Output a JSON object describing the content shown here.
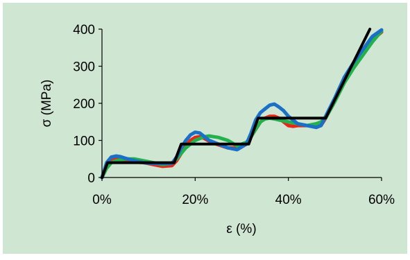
{
  "colors": {
    "background": "#cfe6d2",
    "axis": "#000000"
  },
  "chart_data": {
    "type": "line",
    "title": "",
    "xlabel": "ε (%)",
    "ylabel": "σ (MPa)",
    "xlim": [
      0,
      60
    ],
    "ylim": [
      0,
      400
    ],
    "x_ticks": [
      0,
      20,
      40,
      60
    ],
    "x_tick_labels": [
      "0%",
      "20%",
      "40%",
      "60%"
    ],
    "y_ticks": [
      0,
      100,
      200,
      300,
      400
    ],
    "y_tick_labels": [
      "0",
      "100",
      "200",
      "300",
      "400"
    ],
    "grid": false,
    "legend": "none",
    "series": [
      {
        "color": "#e8261a",
        "width": 5,
        "x": [
          0,
          1,
          2,
          3,
          5,
          7,
          9,
          11,
          13,
          15,
          16,
          17,
          18,
          19,
          20,
          21,
          22,
          23,
          25,
          27,
          29,
          31,
          32,
          33,
          34,
          35,
          36,
          37,
          38,
          39,
          40,
          41,
          42,
          44,
          46,
          47,
          48,
          50,
          52,
          54,
          56,
          58,
          60
        ],
        "y": [
          0,
          30,
          45,
          50,
          45,
          42,
          40,
          35,
          30,
          32,
          45,
          65,
          85,
          100,
          108,
          110,
          105,
          98,
          88,
          80,
          80,
          90,
          110,
          130,
          150,
          160,
          165,
          165,
          160,
          150,
          140,
          138,
          140,
          140,
          140,
          140,
          160,
          210,
          260,
          300,
          340,
          370,
          392
        ]
      },
      {
        "color": "#22b14c",
        "width": 5,
        "x": [
          0,
          1,
          2,
          3,
          5,
          7,
          9,
          11,
          13,
          15,
          16,
          17,
          18,
          19,
          20,
          21,
          22,
          23,
          24,
          25,
          27,
          29,
          31,
          32,
          33,
          34,
          35,
          36,
          37,
          38,
          40,
          42,
          44,
          46,
          47,
          48,
          50,
          52,
          54,
          56,
          58,
          60
        ],
        "y": [
          0,
          25,
          40,
          45,
          50,
          50,
          45,
          40,
          35,
          38,
          50,
          65,
          80,
          90,
          100,
          105,
          110,
          112,
          110,
          108,
          100,
          85,
          95,
          110,
          130,
          150,
          158,
          160,
          158,
          155,
          150,
          145,
          140,
          145,
          150,
          160,
          205,
          255,
          295,
          330,
          365,
          395
        ]
      },
      {
        "color": "#1a6fc7",
        "width": 5,
        "x": [
          0,
          1,
          2,
          3,
          4,
          5,
          7,
          9,
          11,
          13,
          15,
          16,
          17,
          18,
          19,
          20,
          21,
          22,
          23,
          25,
          27,
          29,
          31,
          32,
          33,
          34,
          35,
          36,
          37,
          38,
          39,
          40,
          42,
          44,
          46,
          47,
          48,
          50,
          52,
          54,
          56,
          58,
          60
        ],
        "y": [
          0,
          40,
          55,
          58,
          56,
          52,
          45,
          40,
          38,
          38,
          38,
          55,
          80,
          100,
          115,
          122,
          120,
          110,
          100,
          90,
          80,
          75,
          90,
          120,
          155,
          175,
          185,
          195,
          198,
          190,
          180,
          165,
          145,
          140,
          135,
          140,
          165,
          215,
          270,
          310,
          345,
          380,
          398
        ]
      },
      {
        "color": "#000000",
        "width": 4,
        "x": [
          0,
          1.2,
          15.5,
          17,
          31.5,
          33.5,
          48,
          57.5
        ],
        "y": [
          0,
          40,
          40,
          90,
          90,
          160,
          160,
          400
        ]
      }
    ]
  }
}
